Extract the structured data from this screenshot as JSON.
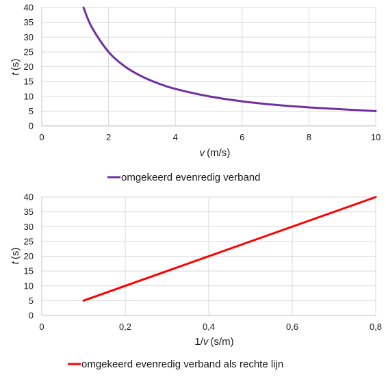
{
  "chart_data": [
    {
      "type": "line",
      "xlabel": {
        "var": "v",
        "unit": "(m/s)"
      },
      "ylabel": {
        "var": "t",
        "unit": "(s)"
      },
      "xlim": [
        0,
        10
      ],
      "ylim": [
        0,
        40
      ],
      "xticks": [
        "0",
        "2",
        "4",
        "6",
        "8",
        "10"
      ],
      "yticks": [
        "0",
        "5",
        "10",
        "15",
        "20",
        "25",
        "30",
        "35",
        "40"
      ],
      "xtick_values": [
        0,
        2,
        4,
        6,
        8,
        10
      ],
      "ytick_values": [
        0,
        5,
        10,
        15,
        20,
        25,
        30,
        35,
        40
      ],
      "grid": "vertical and horizontal",
      "legend_position": "bottom",
      "series": [
        {
          "name": "omgekeerd evenredig verband",
          "color": "#7030a0",
          "x": [
            1.25,
            1.5,
            2,
            2.5,
            3,
            3.5,
            4,
            5,
            6,
            7,
            8,
            9,
            10
          ],
          "y": [
            40,
            33.3,
            25,
            20,
            16.7,
            14.3,
            12.5,
            10,
            8.3,
            7.1,
            6.25,
            5.6,
            5
          ]
        }
      ]
    },
    {
      "type": "line",
      "xlabel": {
        "var": "v",
        "prefix": "1/",
        "unit": "(s/m)"
      },
      "ylabel": {
        "var": "t",
        "unit": "(s)"
      },
      "xlim": [
        0,
        0.8
      ],
      "ylim": [
        0,
        40
      ],
      "xticks": [
        "0",
        "0,2",
        "0,4",
        "0,6",
        "0,8"
      ],
      "yticks": [
        "0",
        "5",
        "10",
        "15",
        "20",
        "25",
        "30",
        "35",
        "40"
      ],
      "xtick_values": [
        0,
        0.2,
        0.4,
        0.6,
        0.8
      ],
      "ytick_values": [
        0,
        5,
        10,
        15,
        20,
        25,
        30,
        35,
        40
      ],
      "grid": "vertical and horizontal",
      "legend_position": "bottom",
      "series": [
        {
          "name": "omgekeerd evenredig verband als rechte lijn",
          "color": "#ff0000",
          "x": [
            0.1,
            0.8
          ],
          "y": [
            5,
            40
          ]
        }
      ]
    }
  ]
}
